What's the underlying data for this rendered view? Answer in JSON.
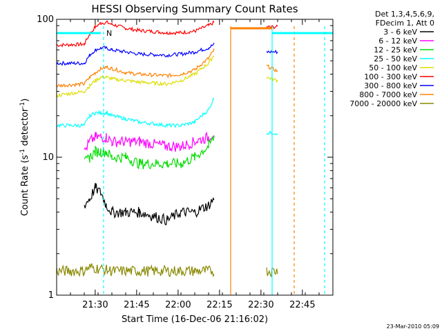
{
  "chart_data": {
    "type": "line",
    "title": "HESSI Observing Summary Count Rates",
    "xlabel": "Start Time (16-Dec-06 21:16:02)",
    "ylabel_main": "Count Rate (s",
    "ylabel_sup1": "-1",
    "ylabel_mid": " detector",
    "ylabel_sup2": "-1",
    "ylabel_end": ")",
    "y_scale": "log",
    "ylim": [
      1,
      100
    ],
    "xlim": [
      "21:16:02",
      "22:56:00"
    ],
    "x_ticks": [
      "21:30",
      "21:45",
      "22:00",
      "22:15",
      "22:30",
      "22:45"
    ],
    "y_ticks": [
      "1",
      "10",
      "100"
    ],
    "legend": {
      "header": [
        "Det 1,3,4,5,6,9,",
        "FDecim 1, Att 0"
      ],
      "placement": "right",
      "entries": [
        {
          "label": "3 - 6 keV",
          "color": "#000000"
        },
        {
          "label": "6 - 12 keV",
          "color": "#ff00ff"
        },
        {
          "label": "12 - 25 keV",
          "color": "#00dd00"
        },
        {
          "label": "25 - 50 keV",
          "color": "#00ffff"
        },
        {
          "label": "50 - 100 keV",
          "color": "#dddd00"
        },
        {
          "label": "100 - 300 keV",
          "color": "#ff0000"
        },
        {
          "label": "300 - 800 keV",
          "color": "#0000ff"
        },
        {
          "label": "800 - 7000 keV",
          "color": "#ff8000"
        },
        {
          "label": "7000 - 20000 keV",
          "color": "#888800"
        }
      ]
    },
    "series": [
      {
        "name": "100 - 300 keV",
        "color": "#ff0000",
        "points": [
          [
            0,
            65
          ],
          [
            10,
            66
          ],
          [
            12,
            78
          ],
          [
            14,
            88
          ],
          [
            16,
            94
          ],
          [
            18,
            95
          ],
          [
            20,
            92
          ],
          [
            25,
            86
          ],
          [
            30,
            83
          ],
          [
            40,
            80
          ],
          [
            45,
            80
          ],
          [
            50,
            82
          ],
          [
            55,
            90
          ],
          [
            57,
            95
          ],
          [
            76,
            88
          ],
          [
            80,
            88
          ]
        ]
      },
      {
        "name": "300 - 800 keV",
        "color": "#0000ff",
        "points": [
          [
            0,
            48
          ],
          [
            10,
            48
          ],
          [
            12,
            55
          ],
          [
            14,
            60
          ],
          [
            16,
            62
          ],
          [
            18,
            62
          ],
          [
            20,
            60
          ],
          [
            25,
            58
          ],
          [
            30,
            56
          ],
          [
            40,
            55
          ],
          [
            45,
            56
          ],
          [
            50,
            58
          ],
          [
            55,
            62
          ],
          [
            57,
            66
          ],
          [
            76,
            58
          ],
          [
            80,
            58
          ]
        ]
      },
      {
        "name": "800 - 7000 keV",
        "color": "#ff8000",
        "points": [
          [
            0,
            33
          ],
          [
            10,
            34
          ],
          [
            12,
            38
          ],
          [
            14,
            41
          ],
          [
            16,
            44
          ],
          [
            18,
            45
          ],
          [
            20,
            44
          ],
          [
            25,
            41
          ],
          [
            30,
            40
          ],
          [
            40,
            39
          ],
          [
            45,
            40
          ],
          [
            50,
            43
          ],
          [
            55,
            52
          ],
          [
            57,
            60
          ],
          [
            76,
            46
          ],
          [
            80,
            42
          ]
        ]
      },
      {
        "name": "50 - 100 keV",
        "color": "#dddd00",
        "points": [
          [
            0,
            28
          ],
          [
            10,
            30
          ],
          [
            12,
            33
          ],
          [
            14,
            36
          ],
          [
            16,
            38
          ],
          [
            18,
            38
          ],
          [
            20,
            37
          ],
          [
            25,
            36
          ],
          [
            30,
            35
          ],
          [
            40,
            34
          ],
          [
            45,
            36
          ],
          [
            50,
            40
          ],
          [
            55,
            48
          ],
          [
            57,
            55
          ],
          [
            76,
            38
          ],
          [
            80,
            36
          ]
        ]
      },
      {
        "name": "25 - 50 keV",
        "color": "#00ffff",
        "points": [
          [
            0,
            17
          ],
          [
            10,
            17
          ],
          [
            12,
            20
          ],
          [
            14,
            21
          ],
          [
            16,
            21
          ],
          [
            18,
            21
          ],
          [
            20,
            20
          ],
          [
            25,
            19
          ],
          [
            30,
            18
          ],
          [
            40,
            17
          ],
          [
            45,
            17
          ],
          [
            50,
            18
          ],
          [
            55,
            22
          ],
          [
            57,
            27
          ],
          [
            76,
            15
          ],
          [
            80,
            15
          ]
        ]
      },
      {
        "name": "6 - 12 keV",
        "color": "#ff00ff",
        "points": [
          [
            10,
            11
          ],
          [
            12,
            13
          ],
          [
            14,
            14
          ],
          [
            16,
            14
          ],
          [
            18,
            14
          ],
          [
            20,
            13
          ],
          [
            25,
            13
          ],
          [
            30,
            13
          ],
          [
            40,
            12
          ],
          [
            45,
            12
          ],
          [
            50,
            13
          ],
          [
            55,
            14
          ],
          [
            57,
            15
          ]
        ]
      },
      {
        "name": "12 - 25 keV",
        "color": "#00dd00",
        "points": [
          [
            10,
            9
          ],
          [
            12,
            10
          ],
          [
            14,
            11
          ],
          [
            16,
            11
          ],
          [
            18,
            11
          ],
          [
            20,
            10
          ],
          [
            25,
            10
          ],
          [
            30,
            9
          ],
          [
            40,
            9
          ],
          [
            45,
            9
          ],
          [
            50,
            10
          ],
          [
            55,
            12
          ],
          [
            57,
            14
          ]
        ]
      },
      {
        "name": "3 - 6 keV",
        "color": "#000000",
        "points": [
          [
            10,
            4.5
          ],
          [
            12,
            5
          ],
          [
            14,
            6
          ],
          [
            16,
            5.5
          ],
          [
            18,
            4.5
          ],
          [
            20,
            4
          ],
          [
            25,
            4
          ],
          [
            30,
            4
          ],
          [
            40,
            3.5
          ],
          [
            45,
            4
          ],
          [
            50,
            4
          ],
          [
            55,
            4.5
          ],
          [
            57,
            5
          ]
        ]
      },
      {
        "name": "7000 - 20000 keV",
        "color": "#888800",
        "points": [
          [
            0,
            1.5
          ],
          [
            10,
            1.5
          ],
          [
            12,
            1.6
          ],
          [
            20,
            1.5
          ],
          [
            30,
            1.5
          ],
          [
            40,
            1.5
          ],
          [
            50,
            1.5
          ],
          [
            57,
            1.5
          ],
          [
            76,
            1.5
          ],
          [
            80,
            1.5
          ]
        ]
      }
    ],
    "markers": {
      "N_label": "N"
    },
    "timestamp": "23-Mar-2010 05:09"
  }
}
